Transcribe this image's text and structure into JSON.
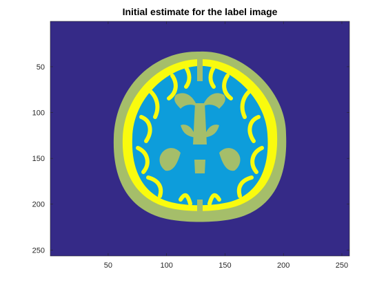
{
  "chart_data": {
    "type": "heatmap",
    "title": "Initial estimate for the label image",
    "xlabel": "",
    "ylabel": "",
    "xlim": [
      0.5,
      256.5
    ],
    "ylim": [
      256.5,
      0.5
    ],
    "x_ticks": [
      50,
      100,
      150,
      200,
      250
    ],
    "y_ticks": [
      50,
      100,
      150,
      200,
      250
    ],
    "image_size": [
      256,
      256
    ],
    "y_direction": "reversed",
    "grid": false,
    "legend": "none",
    "colormap": "parula",
    "labels": [
      {
        "value": 1,
        "color": "#352a87"
      },
      {
        "value": 2,
        "color": "#a5be6a"
      },
      {
        "value": 3,
        "color": "#f9fb0e"
      },
      {
        "value": 4,
        "color": "#0d9ddb"
      }
    ]
  }
}
